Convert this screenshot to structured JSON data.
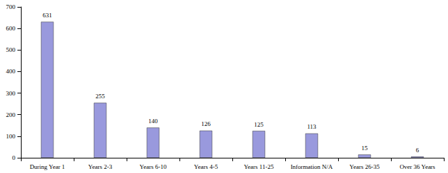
{
  "chart_data": {
    "type": "bar",
    "categories": [
      "During Year 1",
      "Years 2-3",
      "Years 6-10",
      "Years 4-5",
      "Years 11-25",
      "Information N/A",
      "Years 26-35",
      "Over 36 Years"
    ],
    "values": [
      631,
      255,
      140,
      126,
      125,
      113,
      15,
      6
    ],
    "color": "#9999dd",
    "ylim": [
      0,
      700
    ],
    "yticks": [
      0,
      100,
      200,
      300,
      400,
      500,
      600,
      700
    ],
    "grid": false,
    "data_labels": true
  }
}
